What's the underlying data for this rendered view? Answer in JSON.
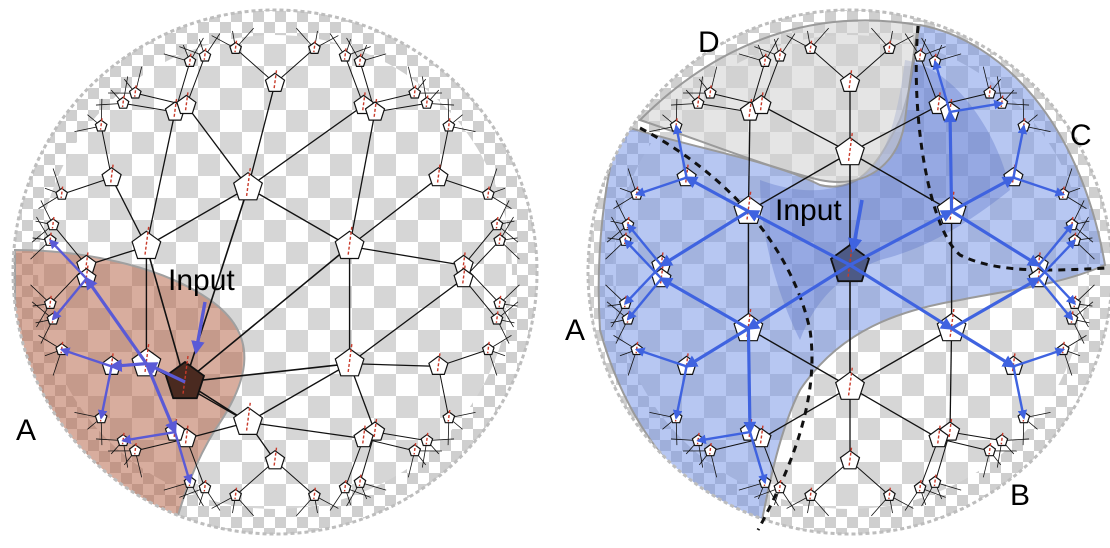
{
  "panels": [
    {
      "id": "left",
      "labels": {
        "input": "Input",
        "regions": [
          "A"
        ]
      },
      "colors": {
        "highlight": "#b86a4f",
        "input_node": "#4a2a20",
        "arrow": "#5a5ad6"
      }
    },
    {
      "id": "right",
      "labels": {
        "input": "Input",
        "regions": [
          "D",
          "C",
          "A",
          "B"
        ]
      },
      "colors": {
        "highlight": "#6f8fe6",
        "input_node": "#4d5a86",
        "arrow": "#3f63e0"
      }
    }
  ],
  "colors": {
    "checker": "#d4d4d4",
    "edge": "#111111",
    "hint": "#c83a2a",
    "rim": "#bdbdbd"
  }
}
